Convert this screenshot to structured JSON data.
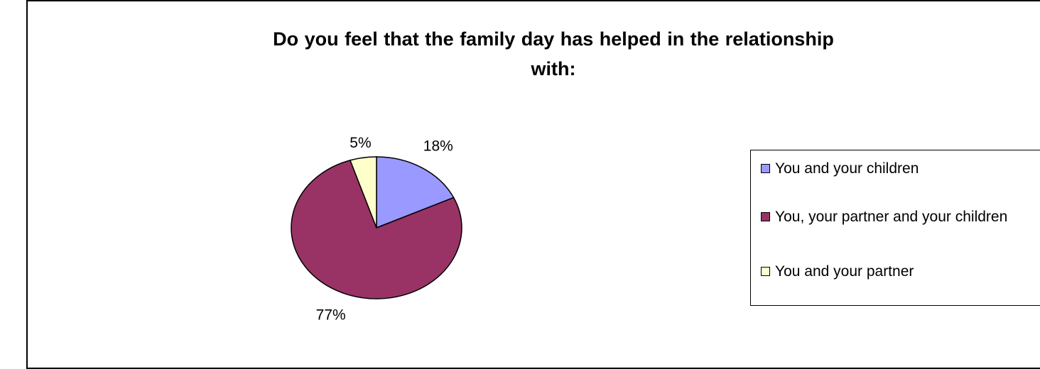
{
  "chart_data": {
    "type": "pie",
    "title": "Do you feel that the family day has helped in the relationship with:",
    "title_lines": [
      "Do you feel that the family day has helped in the relationship",
      "with:"
    ],
    "legend_position": "right",
    "slices": [
      {
        "label": "You and your children",
        "value": 18,
        "value_label": "18%",
        "color": "#9999ff"
      },
      {
        "label": "You, your partner and your children",
        "value": 77,
        "value_label": "77%",
        "color": "#993366"
      },
      {
        "label": "You and your partner",
        "value": 5,
        "value_label": "5%",
        "color": "#ffffcc"
      }
    ]
  }
}
